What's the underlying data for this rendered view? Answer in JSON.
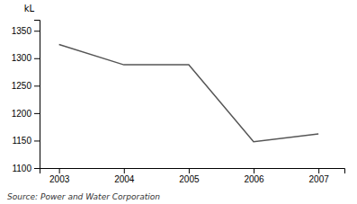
{
  "chart_data": {
    "type": "line",
    "x": [
      2003,
      2004,
      2005,
      2006,
      2007
    ],
    "y": [
      1325,
      1288,
      1288,
      1148,
      1162
    ],
    "color": "#555555",
    "xlim": [
      2002.7,
      2007.4
    ],
    "ylim": [
      1100,
      1370
    ],
    "xticks": [
      2003,
      2004,
      2005,
      2006,
      2007
    ],
    "yticks": [
      1100,
      1150,
      1200,
      1250,
      1300,
      1350
    ],
    "ylabel": "kL",
    "source": "Source: Power and Water Corporation"
  }
}
